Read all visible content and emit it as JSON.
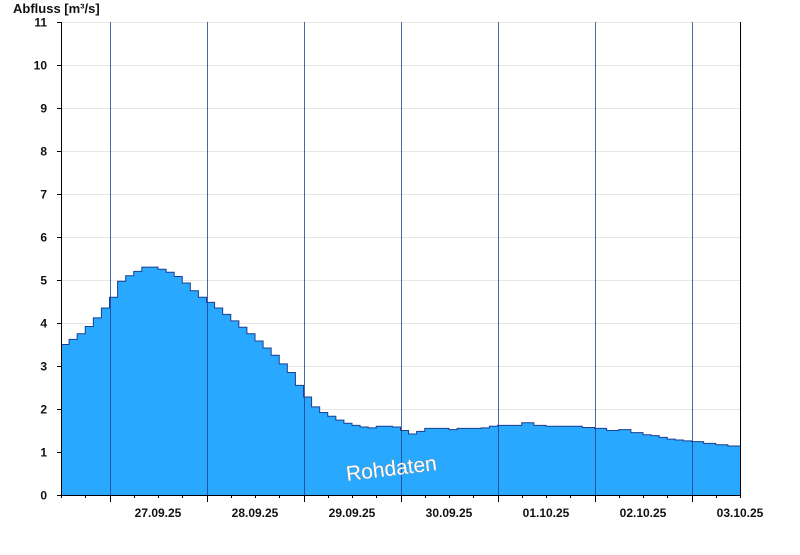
{
  "chart_data": {
    "type": "area",
    "ylabel": "Abfluss [m³/s]",
    "ylim": [
      0,
      11
    ],
    "y_ticks": [
      0,
      1,
      2,
      3,
      4,
      5,
      6,
      7,
      8,
      9,
      10,
      11
    ],
    "x_range": [
      "2025-09-26T12:00",
      "2025-10-03T12:00"
    ],
    "x_tick_labels": [
      "27.09.25",
      "28.09.25",
      "29.09.25",
      "30.09.25",
      "01.10.25",
      "02.10.25",
      "03.10.25"
    ],
    "grid": "horizontal",
    "fill_color": "#28a8ff",
    "line_color": "#1c3f8f",
    "annotation": "Rohdaten",
    "series": [
      {
        "x": [
          "2025-09-26T12:00",
          "2025-09-26T14:00",
          "2025-09-26T16:00",
          "2025-09-26T18:00",
          "2025-09-26T20:00",
          "2025-09-26T22:00",
          "2025-09-27T00:00",
          "2025-09-27T02:00",
          "2025-09-27T04:00",
          "2025-09-27T06:00",
          "2025-09-27T08:00",
          "2025-09-27T10:00",
          "2025-09-27T12:00",
          "2025-09-27T14:00",
          "2025-09-27T16:00",
          "2025-09-27T18:00",
          "2025-09-27T20:00",
          "2025-09-27T22:00",
          "2025-09-28T00:00",
          "2025-09-28T02:00",
          "2025-09-28T04:00",
          "2025-09-28T06:00",
          "2025-09-28T08:00",
          "2025-09-28T10:00",
          "2025-09-28T12:00",
          "2025-09-28T14:00",
          "2025-09-28T16:00",
          "2025-09-28T18:00",
          "2025-09-28T20:00",
          "2025-09-28T22:00",
          "2025-09-29T00:00",
          "2025-09-29T02:00",
          "2025-09-29T04:00",
          "2025-09-29T06:00",
          "2025-09-29T08:00",
          "2025-09-29T10:00",
          "2025-09-29T12:00",
          "2025-09-29T14:00",
          "2025-09-29T16:00",
          "2025-09-29T18:00",
          "2025-09-29T20:00",
          "2025-09-29T22:00",
          "2025-09-30T00:00",
          "2025-09-30T02:00",
          "2025-09-30T04:00",
          "2025-09-30T06:00",
          "2025-09-30T08:00",
          "2025-09-30T10:00",
          "2025-09-30T12:00",
          "2025-09-30T14:00",
          "2025-09-30T16:00",
          "2025-09-30T18:00",
          "2025-09-30T20:00",
          "2025-09-30T22:00",
          "2025-10-01T00:00",
          "2025-10-01T03:00",
          "2025-10-01T06:00",
          "2025-10-01T09:00",
          "2025-10-01T12:00",
          "2025-10-01T15:00",
          "2025-10-01T18:00",
          "2025-10-01T21:00",
          "2025-10-02T00:00",
          "2025-10-02T03:00",
          "2025-10-02T06:00",
          "2025-10-02T09:00",
          "2025-10-02T12:00",
          "2025-10-02T14:00",
          "2025-10-02T16:00",
          "2025-10-02T18:00",
          "2025-10-02T20:00",
          "2025-10-02T22:00",
          "2025-10-03T00:00",
          "2025-10-03T03:00",
          "2025-10-03T06:00",
          "2025-10-03T09:00",
          "2025-10-03T12:00"
        ],
        "values": [
          3.5,
          3.62,
          3.75,
          3.92,
          4.12,
          4.35,
          4.6,
          4.97,
          5.1,
          5.2,
          5.3,
          5.3,
          5.25,
          5.18,
          5.08,
          4.93,
          4.75,
          4.6,
          4.48,
          4.35,
          4.2,
          4.05,
          3.9,
          3.75,
          3.58,
          3.42,
          3.25,
          3.05,
          2.85,
          2.55,
          2.28,
          2.05,
          1.92,
          1.83,
          1.74,
          1.67,
          1.62,
          1.58,
          1.56,
          1.6,
          1.6,
          1.58,
          1.5,
          1.42,
          1.48,
          1.55,
          1.55,
          1.55,
          1.52,
          1.55,
          1.55,
          1.55,
          1.56,
          1.6,
          1.62,
          1.62,
          1.68,
          1.62,
          1.6,
          1.6,
          1.6,
          1.57,
          1.55,
          1.5,
          1.52,
          1.45,
          1.4,
          1.38,
          1.34,
          1.3,
          1.28,
          1.26,
          1.24,
          1.2,
          1.17,
          1.14,
          1.13
        ]
      }
    ]
  }
}
